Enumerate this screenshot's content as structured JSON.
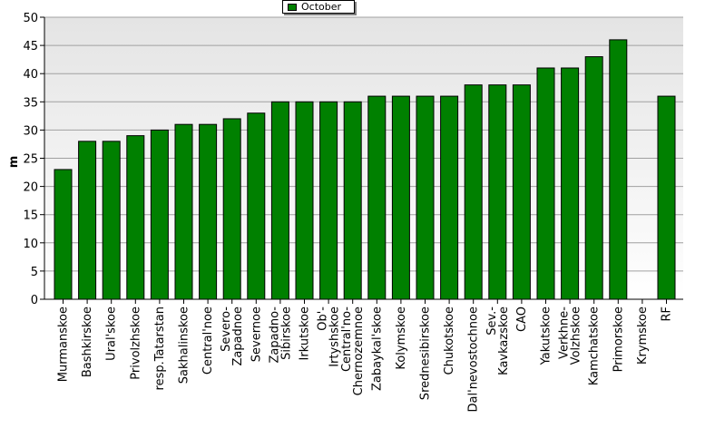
{
  "chart_data": {
    "type": "bar",
    "ylabel": "m",
    "ylim": [
      0,
      50
    ],
    "y_ticks": [
      "0",
      "5",
      "10",
      "15",
      "20",
      "25",
      "30",
      "35",
      "40",
      "45",
      "50"
    ],
    "grid": true,
    "legend_position": "top-center",
    "categories": [
      "Murmanskoe",
      "Bashkirskoe",
      "Ural'skoe",
      "Privolzhskoe",
      "resp.Tatarstan",
      "Sakhalinskoe",
      "Central'noe",
      "Severo-\nZapadnoe",
      "Severnoe",
      "Zapadno-\nSibirskoe",
      "Irkutskoe",
      "Ob'-\nIrtyshskoe",
      "Central'no-\nChernozemnoe",
      "Zabaykal'skoe",
      "Kolymskoe",
      "Srednesibirskoe",
      "Chukotskoe",
      "Dal'nevostochnoe",
      "Sev.-\nKavkazskoe",
      "CAO",
      "Yakutskoe",
      "Verkhne-\nVolzhskoe",
      "Kamchatskoe",
      "Primorskoe",
      "Krymskoe",
      "RF"
    ],
    "series": [
      {
        "name": "October",
        "color": "#008000",
        "values": [
          23,
          28,
          28,
          29,
          30,
          31,
          31,
          32,
          33,
          35,
          35,
          35,
          35,
          36,
          36,
          36,
          36,
          38,
          38,
          38,
          41,
          41,
          43,
          46,
          null,
          36
        ]
      }
    ]
  }
}
